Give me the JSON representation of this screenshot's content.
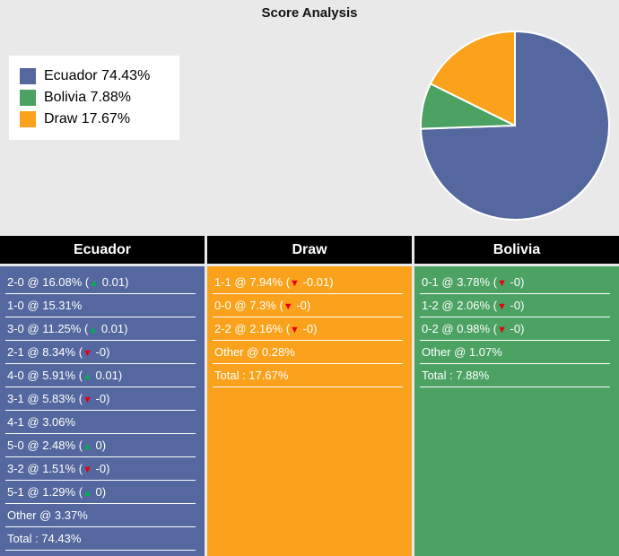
{
  "title": "Score Analysis",
  "colors": {
    "background": "#e9e9e9",
    "ecuador": "#54679E",
    "bolivia": "#4CA263",
    "draw": "#FAA21B",
    "header_bg": "#000000",
    "header_text": "#ffffff",
    "row_text": "#ffffff",
    "up_arrow": "#00B050",
    "down_arrow": "#E60012",
    "pie_stroke": "#ffffff"
  },
  "icons": {
    "up_glyph": "▲",
    "down_glyph": "▼"
  },
  "legend": {
    "items": [
      {
        "key": "ecuador",
        "label": "Ecuador 74.43%",
        "color": "#54679E"
      },
      {
        "key": "bolivia",
        "label": "Bolivia 7.88%",
        "color": "#4CA263"
      },
      {
        "key": "draw",
        "label": "Draw 17.67%",
        "color": "#FAA21B"
      }
    ]
  },
  "chart_data": {
    "type": "pie",
    "title": "Score Analysis",
    "labels": [
      "Ecuador",
      "Bolivia",
      "Draw"
    ],
    "values": [
      74.43,
      7.88,
      17.67
    ],
    "colors": [
      "#54679E",
      "#4CA263",
      "#FAA21B"
    ],
    "direction": "clockwise",
    "start_angle": "top",
    "legend_position": "left",
    "legend_labels": [
      "Ecuador 74.43%",
      "Bolivia 7.88%",
      "Draw 17.67%"
    ]
  },
  "columns": [
    {
      "key": "ecuador",
      "header": "Ecuador",
      "color": "#54679E",
      "rows": [
        {
          "text": "2-0 @ 16.08%",
          "arrow": "up",
          "delta": "0.01"
        },
        {
          "text": "1-0 @ 15.31%"
        },
        {
          "text": "3-0 @ 11.25%",
          "arrow": "up",
          "delta": "0.01"
        },
        {
          "text": "2-1 @ 8.34%",
          "arrow": "down",
          "delta": "-0"
        },
        {
          "text": "4-0 @ 5.91%",
          "arrow": "up",
          "delta": "0.01"
        },
        {
          "text": "3-1 @ 5.83%",
          "arrow": "down",
          "delta": "-0"
        },
        {
          "text": "4-1 @ 3.06%"
        },
        {
          "text": "5-0 @ 2.48%",
          "arrow": "up",
          "delta": "0"
        },
        {
          "text": "3-2 @ 1.51%",
          "arrow": "down",
          "delta": "-0"
        },
        {
          "text": "5-1 @ 1.29%",
          "arrow": "up",
          "delta": "0"
        },
        {
          "text": "Other @ 3.37%"
        },
        {
          "text": "Total : 74.43%"
        }
      ]
    },
    {
      "key": "draw",
      "header": "Draw",
      "color": "#FAA21B",
      "rows": [
        {
          "text": "1-1 @ 7.94%",
          "arrow": "down",
          "delta": "-0.01"
        },
        {
          "text": "0-0 @ 7.3%",
          "arrow": "down",
          "delta": "-0"
        },
        {
          "text": "2-2 @ 2.16%",
          "arrow": "down",
          "delta": "-0"
        },
        {
          "text": "Other @ 0.28%"
        },
        {
          "text": "Total : 17.67%"
        }
      ]
    },
    {
      "key": "bolivia",
      "header": "Bolivia",
      "color": "#4CA263",
      "rows": [
        {
          "text": "0-1 @ 3.78%",
          "arrow": "down",
          "delta": "-0"
        },
        {
          "text": "1-2 @ 2.06%",
          "arrow": "down",
          "delta": "-0"
        },
        {
          "text": "0-2 @ 0.98%",
          "arrow": "down",
          "delta": "-0"
        },
        {
          "text": "Other @ 1.07%"
        },
        {
          "text": "Total : 7.88%"
        }
      ]
    }
  ]
}
